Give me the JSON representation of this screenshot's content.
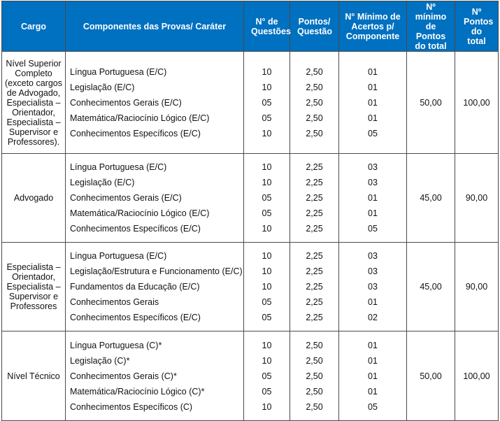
{
  "headers": [
    "Cargo",
    "Componentes das Provas/ Caráter",
    "N° de Questões",
    "Pontos/ Questão",
    "N° Mínimo de Acertos p/ Componente",
    "Nº mínimo de Pontos do total",
    "Nº Pontos do total"
  ],
  "groups": [
    {
      "cargo": "Nível Superior Completo\n(exceto cargos de Advogado, Especialista – Orientador, Especialista – Supervisor e Professores).",
      "minimo_total": "50,00",
      "pontos_total": "100,00",
      "rows": [
        {
          "componente": "Língua Portuguesa (E/C)",
          "questoes": "10",
          "pontos": "2,50",
          "acertos": "01"
        },
        {
          "componente": "Legislação (E/C)",
          "questoes": "10",
          "pontos": "2,50",
          "acertos": "01"
        },
        {
          "componente": "Conhecimentos Gerais (E/C)",
          "questoes": "05",
          "pontos": "2,50",
          "acertos": "01"
        },
        {
          "componente": "Matemática/Raciocínio Lógico (E/C)",
          "questoes": "05",
          "pontos": "2,50",
          "acertos": "01"
        },
        {
          "componente": "Conhecimentos Específicos (E/C)",
          "questoes": "10",
          "pontos": "2,50",
          "acertos": "05"
        }
      ]
    },
    {
      "cargo": "Advogado",
      "minimo_total": "45,00",
      "pontos_total": "90,00",
      "rows": [
        {
          "componente": "Língua Portuguesa (E/C)",
          "questoes": "10",
          "pontos": "2,25",
          "acertos": "03"
        },
        {
          "componente": "Legislação (E/C)",
          "questoes": "10",
          "pontos": "2,25",
          "acertos": "03"
        },
        {
          "componente": "Conhecimentos Gerais (E/C)",
          "questoes": "05",
          "pontos": "2,25",
          "acertos": "01"
        },
        {
          "componente": "Matemática/Raciocínio Lógico (E/C)",
          "questoes": "05",
          "pontos": "2,25",
          "acertos": "01"
        },
        {
          "componente": "Conhecimentos Específicos (E/C)",
          "questoes": "10",
          "pontos": "2,25",
          "acertos": "05"
        }
      ]
    },
    {
      "cargo": "Especialista – Orientador, Especialista – Supervisor e Professores",
      "minimo_total": "45,00",
      "pontos_total": "90,00",
      "rows": [
        {
          "componente": "Língua Portuguesa (E/C)",
          "questoes": "10",
          "pontos": "2,25",
          "acertos": "03"
        },
        {
          "componente": "Legislação/Estrutura e Funcionamento (E/C)",
          "questoes": "10",
          "pontos": "2,25",
          "acertos": "03"
        },
        {
          "componente": "Fundamentos da Educação (E/C)",
          "questoes": "10",
          "pontos": "2,25",
          "acertos": "03"
        },
        {
          "componente": "Conhecimentos Gerais",
          "questoes": "05",
          "pontos": "2,25",
          "acertos": "01"
        },
        {
          "componente": "Conhecimentos Específicos (E/C)",
          "questoes": "05",
          "pontos": "2,25",
          "acertos": "02"
        }
      ]
    },
    {
      "cargo": "Nível Técnico",
      "minimo_total": "50,00",
      "pontos_total": "100,00",
      "rows": [
        {
          "componente": "Língua Portuguesa (C)*",
          "questoes": "10",
          "pontos": "2,50",
          "acertos": "01"
        },
        {
          "componente": "Legislação (C)*",
          "questoes": "10",
          "pontos": "2,50",
          "acertos": "01"
        },
        {
          "componente": "Conhecimentos Gerais (C)*",
          "questoes": "05",
          "pontos": "2,50",
          "acertos": "01"
        },
        {
          "componente": "Matemática/Raciocínio Lógico (C)*",
          "questoes": "05",
          "pontos": "2,50",
          "acertos": "01"
        },
        {
          "componente": "Conhecimentos Específicos (C)",
          "questoes": "10",
          "pontos": "2,50",
          "acertos": "05"
        }
      ]
    }
  ]
}
